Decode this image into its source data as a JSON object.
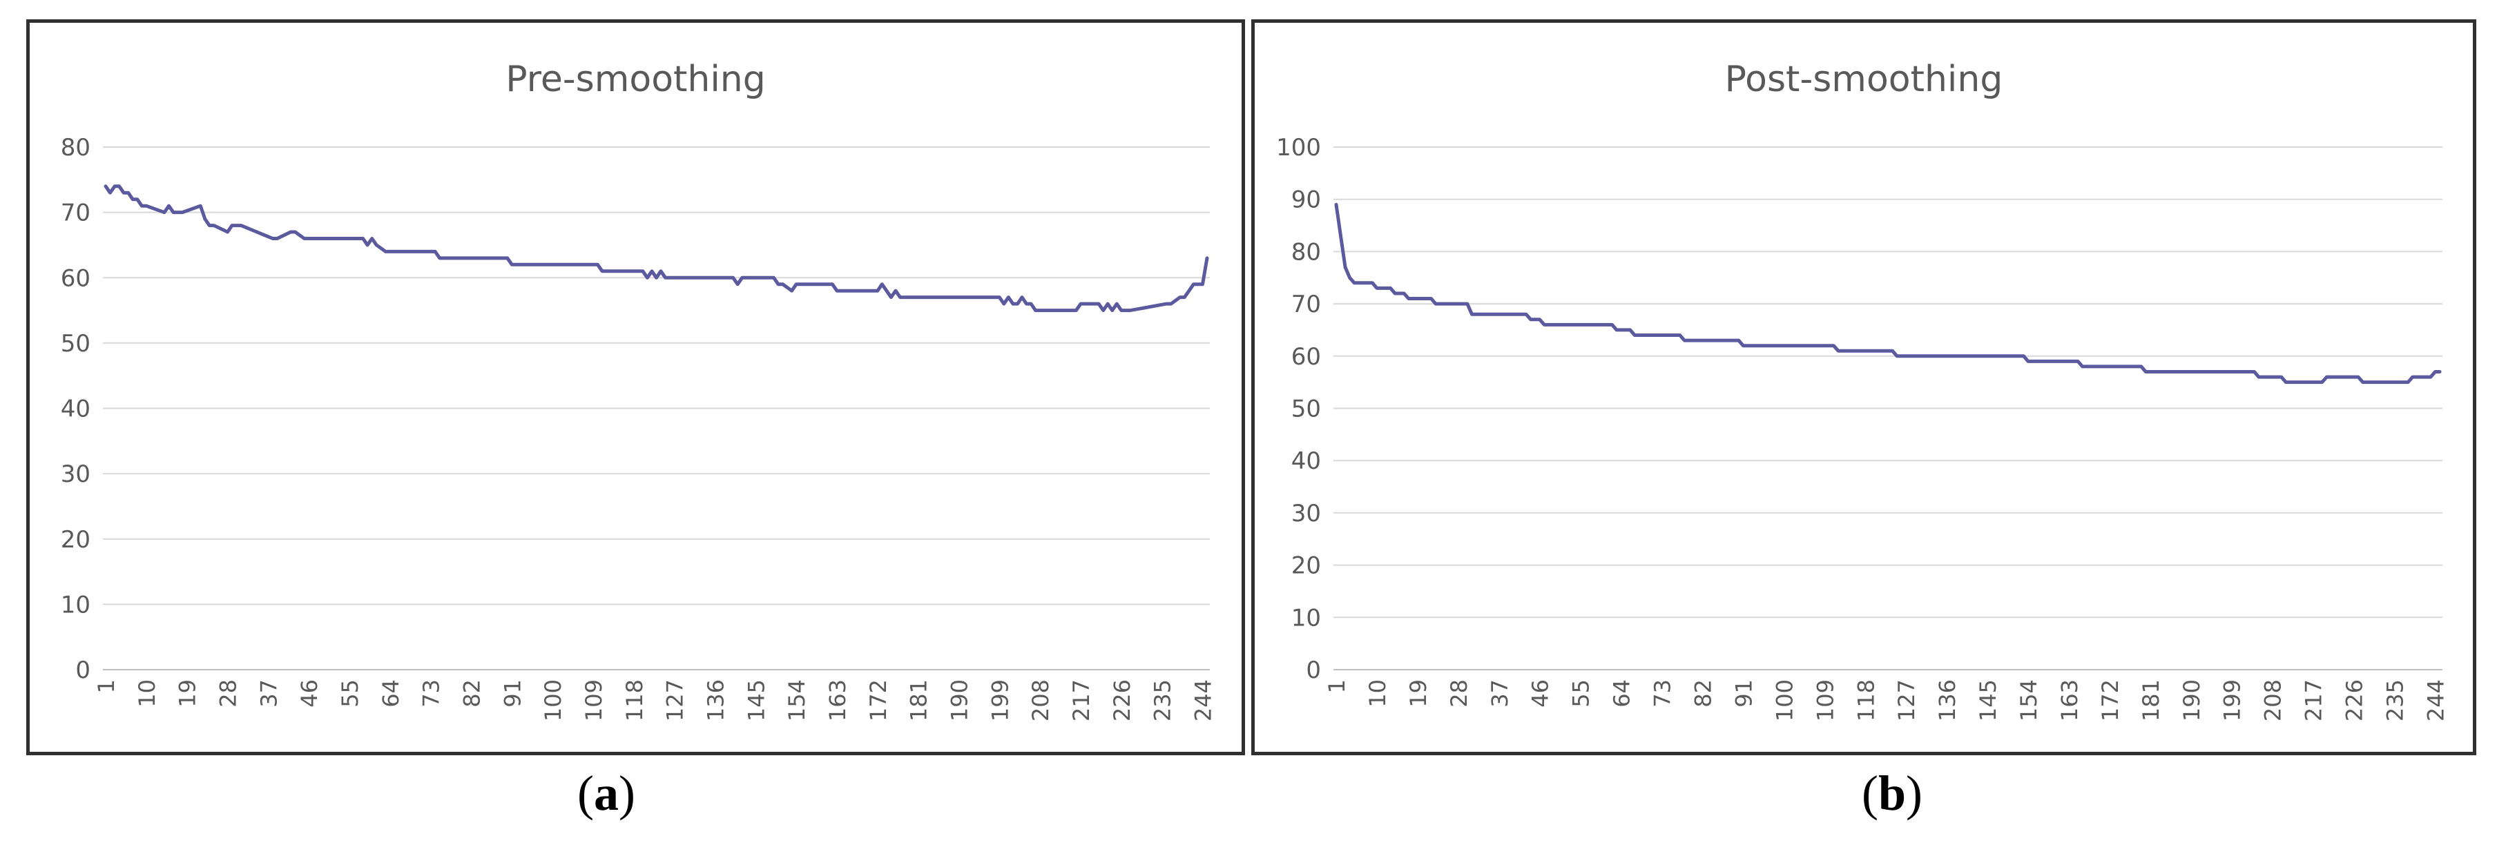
{
  "captions": [
    "a",
    "b"
  ],
  "colors": {
    "line": "#5b5a9e",
    "grid": "#d9d9d9",
    "axis_text": "#595959",
    "border": "#303030"
  },
  "chart_data": [
    {
      "type": "line",
      "title": "Pre-smoothing",
      "xlabel": "",
      "ylabel": "",
      "ylim": [
        0,
        80
      ],
      "yticks": [
        0,
        10,
        20,
        30,
        40,
        50,
        60,
        70,
        80
      ],
      "xlim": [
        1,
        245
      ],
      "xticks": [
        1,
        10,
        19,
        28,
        37,
        46,
        55,
        64,
        73,
        82,
        91,
        100,
        109,
        118,
        127,
        136,
        145,
        154,
        163,
        172,
        181,
        190,
        199,
        208,
        217,
        226,
        235,
        244
      ],
      "grid": true,
      "legend": "none",
      "series": [
        {
          "x": [
            1,
            2,
            3,
            4,
            5,
            6,
            7,
            8,
            9,
            10,
            14,
            15,
            16,
            17,
            18,
            22,
            23,
            24,
            25,
            28,
            29,
            30,
            31,
            38,
            39,
            42,
            43,
            45,
            46,
            58,
            59,
            60,
            61,
            63,
            64,
            74,
            75,
            90,
            91,
            110,
            111,
            120,
            121,
            122,
            123,
            124,
            125,
            126,
            140,
            141,
            142,
            149,
            150,
            151,
            153,
            154,
            162,
            163,
            172,
            173,
            174,
            175,
            176,
            177,
            178,
            199,
            200,
            201,
            202,
            203,
            204,
            205,
            206,
            207,
            208,
            216,
            217,
            221,
            222,
            223,
            224,
            225,
            226,
            227,
            228,
            236,
            237,
            239,
            240,
            241,
            242,
            244,
            245
          ],
          "y": [
            74,
            73,
            74,
            74,
            73,
            73,
            72,
            72,
            71,
            71,
            70,
            71,
            70,
            70,
            70,
            71,
            69,
            68,
            68,
            67,
            68,
            68,
            68,
            66,
            66,
            67,
            67,
            66,
            66,
            66,
            65,
            66,
            65,
            64,
            64,
            64,
            63,
            63,
            62,
            62,
            61,
            61,
            60,
            61,
            60,
            61,
            60,
            60,
            60,
            59,
            60,
            60,
            59,
            59,
            58,
            59,
            59,
            58,
            58,
            59,
            58,
            57,
            58,
            57,
            57,
            57,
            56,
            57,
            56,
            56,
            57,
            56,
            56,
            55,
            55,
            55,
            56,
            56,
            55,
            56,
            55,
            56,
            55,
            55,
            55,
            56,
            56,
            57,
            57,
            58,
            59,
            59,
            63
          ]
        }
      ]
    },
    {
      "type": "line",
      "title": "Post-smoothing",
      "xlabel": "",
      "ylabel": "",
      "ylim": [
        0,
        100
      ],
      "yticks": [
        0,
        10,
        20,
        30,
        40,
        50,
        60,
        70,
        80,
        90,
        100
      ],
      "xlim": [
        1,
        245
      ],
      "xticks": [
        1,
        10,
        19,
        28,
        37,
        46,
        55,
        64,
        73,
        82,
        91,
        100,
        109,
        118,
        127,
        136,
        145,
        154,
        163,
        172,
        181,
        190,
        199,
        208,
        217,
        226,
        235,
        244
      ],
      "grid": true,
      "legend": "none",
      "series": [
        {
          "x": [
            1,
            2,
            3,
            4,
            5,
            9,
            10,
            13,
            14,
            16,
            17,
            22,
            23,
            30,
            31,
            43,
            44,
            46,
            47,
            62,
            63,
            66,
            67,
            77,
            78,
            90,
            91,
            111,
            112,
            124,
            125,
            153,
            154,
            165,
            166,
            179,
            180,
            204,
            205,
            210,
            211,
            219,
            220,
            227,
            228,
            238,
            239,
            243,
            244,
            245
          ],
          "y": [
            89,
            83,
            77,
            75,
            74,
            74,
            73,
            73,
            72,
            72,
            71,
            71,
            70,
            70,
            68,
            68,
            67,
            67,
            66,
            66,
            65,
            65,
            64,
            64,
            63,
            63,
            62,
            62,
            61,
            61,
            60,
            60,
            59,
            59,
            58,
            58,
            57,
            57,
            56,
            56,
            55,
            55,
            56,
            56,
            55,
            55,
            56,
            56,
            57,
            57
          ]
        }
      ]
    }
  ]
}
